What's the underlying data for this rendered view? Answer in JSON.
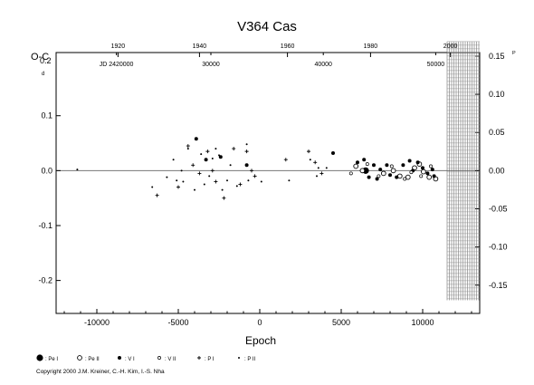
{
  "chart_data": {
    "type": "scatter",
    "title": "V364 Cas",
    "xlabel": "Epoch",
    "ylabel": "O-C",
    "ylabel_suffix": "d",
    "right_axis_suffix": "P",
    "xlim": [
      -12500,
      13500
    ],
    "ylim": [
      -0.26,
      0.215
    ],
    "x_ticks": [
      -10000,
      -5000,
      0,
      5000,
      10000
    ],
    "y_ticks": [
      -0.2,
      -0.1,
      0.0,
      0.1
    ],
    "y_tick_labels": [
      "-0.2",
      "-0.1",
      "0.0",
      "0.1"
    ],
    "top_label_0_2": "0.2",
    "right_ticks": [
      0.15,
      0.1,
      0.05,
      0.0,
      -0.05,
      -0.1,
      -0.15
    ],
    "right_tick_labels": [
      "0.15",
      "0.10",
      "0.05",
      "0.00",
      "-0.05",
      "-0.10",
      "-0.15"
    ],
    "right_scale_factor": 1.39,
    "year_ticks": [
      {
        "label": "1920",
        "epoch": -8700
      },
      {
        "label": "1940",
        "epoch": -3700
      },
      {
        "label": "1960",
        "epoch": 1700
      },
      {
        "label": "1980",
        "epoch": 6800
      },
      {
        "label": "2000",
        "epoch": 11700
      }
    ],
    "jd_ticks": [
      {
        "label": "JD 2420000",
        "epoch": -8800
      },
      {
        "label": "30000",
        "epoch": -3000
      },
      {
        "label": "40000",
        "epoch": 3900
      },
      {
        "label": "50000",
        "epoch": 10800
      }
    ],
    "hatched_region_epoch_start": 11500,
    "hatched_region_y": [
      -0.236,
      0.235
    ],
    "series": [
      {
        "name": "Pe I",
        "marker": "filled-circle-large",
        "points": [
          [
            6500,
            0.0
          ]
        ]
      },
      {
        "name": "Pe II",
        "marker": "open-circle",
        "points": [
          [
            5900,
            0.008
          ],
          [
            6300,
            0.0
          ],
          [
            7600,
            -0.005
          ],
          [
            8200,
            0.0
          ],
          [
            8600,
            -0.01
          ],
          [
            9100,
            -0.012
          ],
          [
            9500,
            0.005
          ],
          [
            9800,
            0.012
          ],
          [
            10050,
            -0.002
          ],
          [
            10400,
            -0.012
          ],
          [
            10800,
            -0.015
          ]
        ]
      },
      {
        "name": "V I",
        "marker": "filled-dot",
        "points": [
          [
            -3900,
            0.058
          ],
          [
            -3300,
            0.02
          ],
          [
            -2400,
            0.025
          ],
          [
            -800,
            0.01
          ],
          [
            6000,
            0.015
          ],
          [
            6400,
            0.02
          ],
          [
            7000,
            0.01
          ],
          [
            7400,
            0.002
          ],
          [
            7800,
            0.01
          ],
          [
            8400,
            -0.012
          ],
          [
            8800,
            0.01
          ],
          [
            9200,
            0.018
          ],
          [
            9400,
            0.0
          ],
          [
            9700,
            0.015
          ],
          [
            10000,
            0.005
          ],
          [
            10300,
            -0.005
          ],
          [
            10600,
            0.002
          ],
          [
            10700,
            -0.01
          ],
          [
            4500,
            0.032
          ],
          [
            6700,
            -0.012
          ],
          [
            7200,
            -0.015
          ],
          [
            8000,
            -0.008
          ]
        ]
      },
      {
        "name": "V II",
        "marker": "open-small",
        "points": [
          [
            5600,
            -0.005
          ],
          [
            6600,
            0.012
          ],
          [
            7300,
            -0.01
          ],
          [
            8100,
            0.008
          ],
          [
            8900,
            -0.015
          ],
          [
            9300,
            -0.003
          ],
          [
            9900,
            -0.01
          ],
          [
            10500,
            0.008
          ]
        ]
      },
      {
        "name": "P I",
        "marker": "plus",
        "points": [
          [
            -6300,
            -0.045
          ],
          [
            -5000,
            -0.03
          ],
          [
            -4400,
            0.045
          ],
          [
            -4100,
            0.01
          ],
          [
            -3700,
            -0.005
          ],
          [
            -3200,
            0.035
          ],
          [
            -2900,
            0.0
          ],
          [
            -2700,
            -0.02
          ],
          [
            -2200,
            -0.05
          ],
          [
            -1600,
            0.04
          ],
          [
            -800,
            0.035
          ],
          [
            -300,
            -0.01
          ],
          [
            1600,
            0.02
          ],
          [
            3000,
            0.035
          ],
          [
            3400,
            0.015
          ],
          [
            3800,
            -0.005
          ],
          [
            -500,
            0.0
          ],
          [
            -1200,
            -0.025
          ]
        ]
      },
      {
        "name": "P II",
        "marker": "dot",
        "points": [
          [
            -11200,
            0.002
          ],
          [
            -6600,
            -0.03
          ],
          [
            -5700,
            -0.012
          ],
          [
            -5300,
            0.02
          ],
          [
            -4800,
            0.0
          ],
          [
            -4700,
            -0.02
          ],
          [
            -4400,
            0.04
          ],
          [
            -4000,
            -0.035
          ],
          [
            -3600,
            0.03
          ],
          [
            -3400,
            -0.025
          ],
          [
            -3100,
            -0.01
          ],
          [
            -2900,
            0.022
          ],
          [
            -2500,
            0.028
          ],
          [
            -2300,
            -0.035
          ],
          [
            -2000,
            -0.018
          ],
          [
            -1800,
            0.01
          ],
          [
            -1400,
            -0.028
          ],
          [
            -800,
            0.048
          ],
          [
            -700,
            -0.018
          ],
          [
            100,
            -0.02
          ],
          [
            1800,
            -0.018
          ],
          [
            3100,
            0.02
          ],
          [
            3500,
            -0.01
          ],
          [
            3600,
            0.005
          ],
          [
            4100,
            0.005
          ],
          [
            -5100,
            -0.018
          ],
          [
            -2700,
            0.04
          ]
        ]
      }
    ]
  },
  "legend": [
    {
      "symbol": "●",
      "label": ": Pe I"
    },
    {
      "symbol": "○",
      "label": ": Pe II"
    },
    {
      "symbol": "•",
      "label": ": V I"
    },
    {
      "symbol": "◦",
      "label": ": V II"
    },
    {
      "symbol": "+",
      "label": ": P I"
    },
    {
      "symbol": "·",
      "label": ": P II"
    }
  ],
  "copyright": "Copyright 2000 J.M. Kreiner, C.-H. Kim, I.-S. Nha"
}
